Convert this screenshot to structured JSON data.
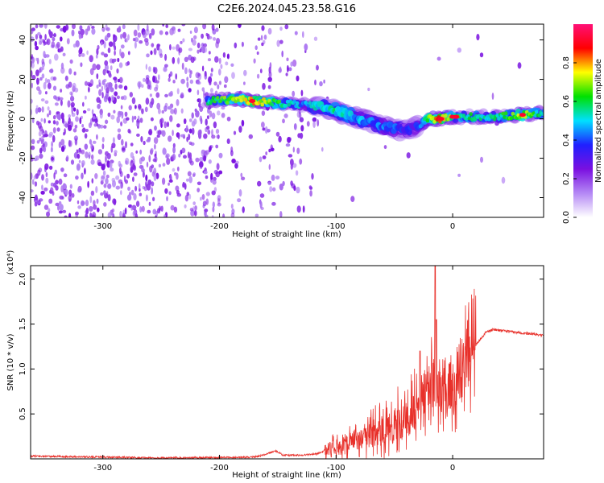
{
  "title": "C2E6.2024.045.23.58.G16",
  "colors": {
    "snr_line": "#e8302a",
    "dot_purple": "#7a10e0",
    "axis": "#000000"
  },
  "chart_data": [
    {
      "type": "heatmap",
      "title": "C2E6.2024.045.23.58.G16",
      "xlabel": "Height of straight line (km)",
      "ylabel": "Frequency (Hz)",
      "xlim": [
        -362,
        78
      ],
      "ylim": [
        -50,
        48
      ],
      "xticks": [
        -300,
        -200,
        -100,
        0
      ],
      "yticks": [
        -40,
        -20,
        0,
        20,
        40
      ],
      "colorbar": {
        "label": "Normalized spectral amplitude",
        "range": [
          0,
          1
        ],
        "ticks": [
          "0.0",
          "0.2",
          "0.4",
          "0.6",
          "0.8"
        ],
        "colormap": [
          "#ffffff",
          "#b488f5",
          "#7a10e0",
          "#2020ff",
          "#00e0ff",
          "#00e000",
          "#ffff00",
          "#ff0000",
          "#ff1077"
        ]
      },
      "ridge": {
        "description_points": [
          {
            "x": -210,
            "y": 9,
            "amp": 0.55
          },
          {
            "x": -185,
            "y": 10,
            "amp": 0.7
          },
          {
            "x": -170,
            "y": 9,
            "amp": 0.8
          },
          {
            "x": -150,
            "y": 8,
            "amp": 0.6
          },
          {
            "x": -130,
            "y": 7,
            "amp": 0.45
          },
          {
            "x": -110,
            "y": 6,
            "amp": 0.5
          },
          {
            "x": -95,
            "y": 3,
            "amp": 0.55
          },
          {
            "x": -80,
            "y": 0,
            "amp": 0.45
          },
          {
            "x": -65,
            "y": -3,
            "amp": 0.4
          },
          {
            "x": -50,
            "y": -5,
            "amp": 0.4
          },
          {
            "x": -40,
            "y": -6,
            "amp": 0.35
          },
          {
            "x": -30,
            "y": -4,
            "amp": 0.35
          },
          {
            "x": -20,
            "y": 0,
            "amp": 0.75
          },
          {
            "x": -10,
            "y": 0,
            "amp": 0.85
          },
          {
            "x": 0,
            "y": 1,
            "amp": 0.6
          },
          {
            "x": 20,
            "y": 1,
            "amp": 0.55
          },
          {
            "x": 40,
            "y": 1,
            "amp": 0.55
          },
          {
            "x": 60,
            "y": 2,
            "amp": 0.7
          },
          {
            "x": 78,
            "y": 3,
            "amp": 0.5
          }
        ]
      }
    },
    {
      "type": "line",
      "xlabel": "Height of straight line (km)",
      "ylabel": "SNR (10 * v/v)",
      "y_multiplier": "(x10⁴)",
      "xlim": [
        -362,
        78
      ],
      "ylim": [
        0,
        2.15
      ],
      "xticks": [
        -300,
        -200,
        -100,
        0
      ],
      "yticks": [
        0.5,
        1.0,
        1.5,
        2.0
      ],
      "ytick_labels": [
        "0.5",
        "1.0",
        "1.5",
        "2.0"
      ],
      "series": [
        {
          "x": [
            -362,
            -300,
            -250,
            -200,
            -170,
            -160,
            -152,
            -145,
            -130,
            -115,
            -105,
            -95,
            -85,
            -75,
            -65,
            -55,
            -45,
            -35,
            -28,
            -22,
            -18,
            -15,
            -12,
            -8,
            -4,
            0,
            6,
            12,
            20,
            28,
            35,
            45,
            60,
            70,
            78
          ],
          "y": [
            0.03,
            0.02,
            0.01,
            0.015,
            0.02,
            0.05,
            0.09,
            0.04,
            0.04,
            0.06,
            0.12,
            0.14,
            0.2,
            0.27,
            0.3,
            0.35,
            0.4,
            0.5,
            0.65,
            0.78,
            0.82,
            0.9,
            0.75,
            0.84,
            0.86,
            0.88,
            0.98,
            1.1,
            1.27,
            1.4,
            1.44,
            1.42,
            1.4,
            1.39,
            1.37
          ],
          "spikes": [
            {
              "x": -28,
              "y": 1.2
            },
            {
              "x": -15,
              "y": 2.15
            },
            {
              "x": -14,
              "y": 1.55
            }
          ]
        }
      ]
    }
  ]
}
